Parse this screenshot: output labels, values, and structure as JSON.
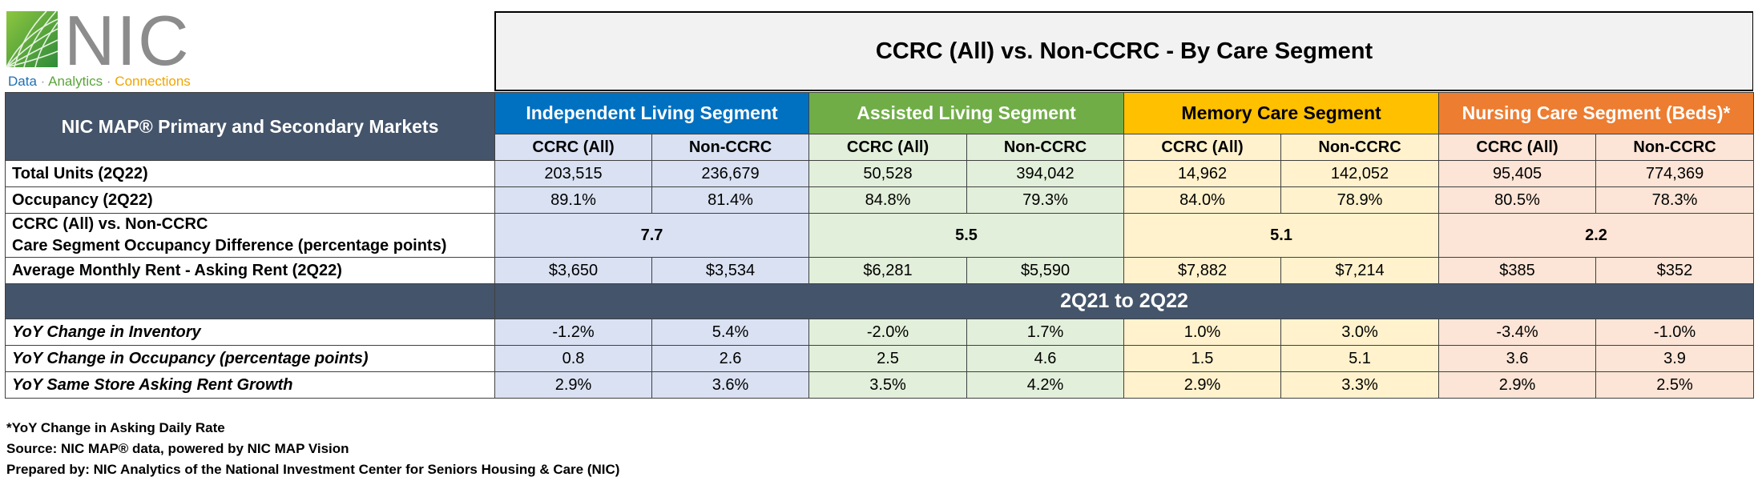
{
  "logo": {
    "brand": "NIC",
    "tagline": [
      "Data",
      "Analytics",
      "Connections"
    ],
    "tagline_separator": "·"
  },
  "title": "CCRC (All) vs. Non-CCRC - By Care Segment",
  "table": {
    "corner_label": "NIC MAP® Primary and Secondary Markets",
    "segments": [
      {
        "label": "Independent Living Segment",
        "color": "#0070c0",
        "tint": "#d9e1f2"
      },
      {
        "label": "Assisted Living Segment",
        "color": "#70ad47",
        "tint": "#e2efda"
      },
      {
        "label": "Memory Care Segment",
        "color": "#ffc000",
        "tint": "#fff2cc"
      },
      {
        "label": "Nursing Care Segment (Beds)*",
        "color": "#ed7d31",
        "tint": "#fce4d6"
      }
    ],
    "subheaders": [
      "CCRC (All)",
      "Non-CCRC"
    ],
    "rows": {
      "total_units": {
        "label": "Total Units (2Q22)",
        "values": [
          "203,515",
          "236,679",
          "50,528",
          "394,042",
          "14,962",
          "142,052",
          "95,405",
          "774,369"
        ]
      },
      "occupancy": {
        "label": "Occupancy (2Q22)",
        "values": [
          "89.1%",
          "81.4%",
          "84.8%",
          "79.3%",
          "84.0%",
          "78.9%",
          "80.5%",
          "78.3%"
        ]
      },
      "difference": {
        "label_line1": "CCRC (All) vs. Non-CCRC",
        "label_line2": "Care Segment Occupancy Difference (percentage points)",
        "values": [
          "7.7",
          "5.5",
          "5.1",
          "2.2"
        ]
      },
      "rent": {
        "label": "Average Monthly Rent - Asking Rent (2Q22)",
        "values": [
          "$3,650",
          "$3,534",
          "$6,281",
          "$5,590",
          "$7,882",
          "$7,214",
          "$385",
          "$352"
        ]
      }
    },
    "period_label": "2Q21 to 2Q22",
    "yoy_rows": {
      "inventory": {
        "label": "YoY Change in Inventory",
        "values": [
          "-1.2%",
          "5.4%",
          "-2.0%",
          "1.7%",
          "1.0%",
          "3.0%",
          "-3.4%",
          "-1.0%"
        ]
      },
      "occupancy": {
        "label": "YoY Change in Occupancy (percentage points)",
        "values": [
          "0.8",
          "2.6",
          "2.5",
          "4.6",
          "1.5",
          "5.1",
          "3.6",
          "3.9"
        ]
      },
      "rent_growth": {
        "label": "YoY Same Store Asking Rent Growth",
        "values": [
          "2.9%",
          "3.6%",
          "3.5%",
          "4.2%",
          "2.9%",
          "3.3%",
          "2.9%",
          "2.5%"
        ]
      }
    }
  },
  "notes": [
    "*YoY Change in Asking Daily Rate",
    "Source: NIC MAP® data, powered by NIC MAP Vision",
    "Prepared by: NIC Analytics of the National Investment Center for Seniors Housing & Care (NIC)"
  ]
}
